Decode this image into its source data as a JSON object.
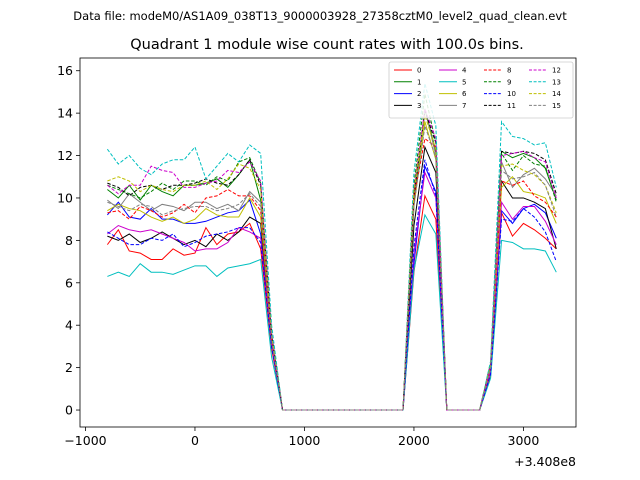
{
  "chart_data": {
    "type": "line",
    "suptitle": "Data file: modeM0/AS1A09_038T13_9000003928_27358cztM0_level2_quad_clean.evt",
    "title": "Quadrant 1 module wise count rates with 100.0s bins.",
    "xlabel": "",
    "ylabel": "",
    "x_offset_label": "+3.408e8",
    "xlim": [
      -1050,
      3480
    ],
    "ylim": [
      -0.8,
      16.6
    ],
    "xticks": [
      -1000,
      0,
      1000,
      2000,
      3000
    ],
    "xtick_labels": [
      "−1000",
      "0",
      "1000",
      "2000",
      "3000"
    ],
    "yticks": [
      0,
      2,
      4,
      6,
      8,
      10,
      12,
      14,
      16
    ],
    "ytick_labels": [
      "0",
      "2",
      "4",
      "6",
      "8",
      "10",
      "12",
      "14",
      "16"
    ],
    "grid": false,
    "legend_position": "top-right",
    "legend_columns": 4,
    "x": [
      -800,
      -700,
      -600,
      -500,
      -400,
      -300,
      -200,
      -100,
      0,
      100,
      200,
      300,
      400,
      500,
      600,
      700,
      800,
      900,
      1000,
      1100,
      1200,
      1300,
      1400,
      1500,
      1600,
      1700,
      1800,
      1900,
      2000,
      2100,
      2200,
      2300,
      2400,
      2500,
      2600,
      2700,
      2800,
      2900,
      3000,
      3100,
      3200,
      3300
    ],
    "series": [
      {
        "name": "0",
        "color": "#ff0000",
        "dash": "solid",
        "values": [
          7.8,
          8.5,
          7.5,
          7.4,
          7.1,
          7.1,
          7.6,
          7.3,
          7.4,
          8.6,
          7.8,
          8.3,
          8.4,
          8.8,
          7.6,
          2.9,
          0,
          0,
          0,
          0,
          0,
          0,
          0,
          0,
          0,
          0,
          0,
          0,
          6.5,
          10.1,
          9.0,
          0,
          0,
          0,
          0,
          1.6,
          9.3,
          8.2,
          8.8,
          8.5,
          8.1,
          7.6
        ]
      },
      {
        "name": "1",
        "color": "#008000",
        "dash": "solid",
        "values": [
          10.4,
          10.0,
          10.6,
          9.9,
          10.6,
          10.3,
          10.1,
          10.6,
          10.6,
          10.7,
          10.9,
          10.5,
          11.1,
          11.8,
          9.9,
          3.5,
          0,
          0,
          0,
          0,
          0,
          0,
          0,
          0,
          0,
          0,
          0,
          0,
          9.7,
          14.2,
          12.2,
          0,
          0,
          0,
          0,
          2.1,
          12.2,
          11.9,
          12.1,
          11.9,
          11.4,
          9.9
        ]
      },
      {
        "name": "2",
        "color": "#0000ff",
        "dash": "solid",
        "values": [
          9.2,
          9.8,
          9.1,
          9.0,
          9.5,
          9.0,
          9.0,
          8.8,
          8.8,
          8.9,
          9.1,
          9.3,
          9.4,
          9.9,
          8.3,
          3.1,
          0,
          0,
          0,
          0,
          0,
          0,
          0,
          0,
          0,
          0,
          0,
          0,
          6.9,
          11.5,
          10.3,
          0,
          0,
          0,
          0,
          1.8,
          9.4,
          8.8,
          9.5,
          9.7,
          9.3,
          8.1
        ]
      },
      {
        "name": "3",
        "color": "#000000",
        "dash": "solid",
        "values": [
          8.2,
          8.0,
          8.3,
          7.9,
          8.1,
          8.4,
          8.1,
          7.8,
          8.0,
          7.7,
          8.3,
          8.0,
          8.4,
          9.1,
          8.8,
          3.2,
          0,
          0,
          0,
          0,
          0,
          0,
          0,
          0,
          0,
          0,
          0,
          0,
          8.7,
          12.4,
          11.2,
          0,
          0,
          0,
          0,
          1.9,
          10.8,
          10.0,
          10.0,
          9.8,
          9.5,
          7.6
        ]
      },
      {
        "name": "4",
        "color": "#cc00cc",
        "dash": "solid",
        "values": [
          8.3,
          8.7,
          8.5,
          8.4,
          8.5,
          8.3,
          8.1,
          7.9,
          7.5,
          7.6,
          7.6,
          7.9,
          8.6,
          8.4,
          8.1,
          3.1,
          0,
          0,
          0,
          0,
          0,
          0,
          0,
          0,
          0,
          0,
          0,
          0,
          7.4,
          11.2,
          10.0,
          0,
          0,
          0,
          0,
          1.8,
          9.8,
          9.0,
          9.6,
          9.6,
          8.9,
          7.8
        ]
      },
      {
        "name": "5",
        "color": "#00bfbf",
        "dash": "solid",
        "values": [
          6.3,
          6.5,
          6.3,
          6.9,
          6.5,
          6.5,
          6.4,
          6.6,
          6.8,
          6.8,
          6.3,
          6.7,
          6.8,
          6.9,
          7.1,
          2.5,
          0,
          0,
          0,
          0,
          0,
          0,
          0,
          0,
          0,
          0,
          0,
          0,
          6.6,
          9.2,
          8.3,
          0,
          0,
          0,
          0,
          1.5,
          8.0,
          7.9,
          7.6,
          7.6,
          7.5,
          6.5
        ]
      },
      {
        "name": "6",
        "color": "#bfbf00",
        "dash": "solid",
        "values": [
          9.4,
          9.7,
          9.5,
          9.4,
          9.1,
          8.9,
          9.1,
          8.8,
          9.0,
          9.5,
          9.2,
          9.1,
          9.1,
          10.0,
          9.1,
          3.3,
          0,
          0,
          0,
          0,
          0,
          0,
          0,
          0,
          0,
          0,
          0,
          0,
          9.6,
          13.6,
          11.8,
          0,
          0,
          0,
          0,
          2.0,
          10.5,
          11.0,
          10.3,
          10.2,
          10.0,
          8.8
        ]
      },
      {
        "name": "7",
        "color": "#808080",
        "dash": "solid",
        "values": [
          9.9,
          9.5,
          10.2,
          9.8,
          9.4,
          9.7,
          9.6,
          9.4,
          9.8,
          9.8,
          9.5,
          9.7,
          9.4,
          10.3,
          9.8,
          3.4,
          0,
          0,
          0,
          0,
          0,
          0,
          0,
          0,
          0,
          0,
          0,
          0,
          9.9,
          14.2,
          12.0,
          0,
          0,
          0,
          0,
          2.0,
          11.7,
          10.5,
          11.1,
          11.4,
          10.9,
          10.1
        ]
      },
      {
        "name": "8",
        "color": "#ff0000",
        "dash": "dashed",
        "values": [
          9.3,
          9.4,
          9.0,
          9.6,
          9.4,
          9.1,
          9.3,
          9.7,
          9.3,
          10.0,
          10.1,
          10.4,
          10.1,
          10.1,
          9.4,
          3.4,
          0,
          0,
          0,
          0,
          0,
          0,
          0,
          0,
          0,
          0,
          0,
          0,
          10.0,
          12.8,
          12.4,
          0,
          0,
          0,
          0,
          2.0,
          10.8,
          10.6,
          10.8,
          10.1,
          9.8,
          9.1
        ]
      },
      {
        "name": "9",
        "color": "#008000",
        "dash": "dashed",
        "values": [
          10.6,
          10.4,
          10.2,
          10.0,
          10.3,
          10.7,
          10.4,
          10.8,
          10.8,
          10.6,
          11.0,
          10.8,
          11.7,
          11.9,
          10.7,
          3.5,
          0,
          0,
          0,
          0,
          0,
          0,
          0,
          0,
          0,
          0,
          0,
          0,
          10.6,
          14.9,
          12.6,
          0,
          0,
          0,
          0,
          2.1,
          12.1,
          11.3,
          12.0,
          11.6,
          11.5,
          9.8
        ]
      },
      {
        "name": "10",
        "color": "#0000ff",
        "dash": "dashed",
        "values": [
          8.4,
          8.1,
          7.8,
          7.8,
          8.1,
          8.0,
          8.3,
          7.7,
          7.9,
          8.2,
          8.3,
          8.4,
          8.6,
          8.6,
          7.9,
          3.0,
          0,
          0,
          0,
          0,
          0,
          0,
          0,
          0,
          0,
          0,
          0,
          0,
          7.7,
          11.8,
          10.1,
          0,
          0,
          0,
          0,
          1.7,
          9.0,
          8.9,
          9.5,
          9.1,
          8.4,
          7.0
        ]
      },
      {
        "name": "11",
        "color": "#000000",
        "dash": "dashed",
        "values": [
          10.7,
          10.5,
          10.1,
          10.5,
          10.6,
          10.4,
          10.6,
          10.6,
          10.7,
          10.9,
          10.7,
          10.6,
          11.1,
          11.8,
          10.6,
          3.6,
          0,
          0,
          0,
          0,
          0,
          0,
          0,
          0,
          0,
          0,
          0,
          0,
          10.1,
          14.1,
          12.6,
          0,
          0,
          0,
          0,
          2.2,
          12.2,
          12.1,
          12.2,
          12.1,
          11.8,
          10.2
        ]
      },
      {
        "name": "12",
        "color": "#cc00cc",
        "dash": "dashed",
        "values": [
          10.6,
          10.2,
          10.6,
          10.6,
          11.5,
          11.3,
          11.2,
          10.5,
          10.5,
          10.7,
          10.8,
          11.3,
          11.2,
          11.7,
          10.8,
          3.6,
          0,
          0,
          0,
          0,
          0,
          0,
          0,
          0,
          0,
          0,
          0,
          0,
          10.4,
          14.2,
          12.8,
          0,
          0,
          0,
          0,
          2.1,
          12.0,
          12.1,
          12.2,
          11.9,
          11.7,
          10.0
        ]
      },
      {
        "name": "13",
        "color": "#00bfbf",
        "dash": "dashed",
        "values": [
          12.3,
          11.6,
          12.0,
          11.4,
          11.1,
          11.6,
          11.8,
          11.8,
          12.4,
          10.9,
          11.5,
          12.1,
          11.7,
          12.5,
          12.1,
          4.0,
          0,
          0,
          0,
          0,
          0,
          0,
          0,
          0,
          0,
          0,
          0,
          0,
          11.2,
          15.4,
          13.4,
          0,
          0,
          0,
          0,
          2.3,
          13.6,
          12.9,
          12.8,
          12.5,
          12.6,
          10.5
        ]
      },
      {
        "name": "14",
        "color": "#bfbf00",
        "dash": "dashed",
        "values": [
          10.8,
          11.0,
          10.8,
          10.3,
          10.6,
          10.4,
          10.3,
          10.6,
          10.6,
          10.8,
          10.4,
          10.9,
          11.6,
          11.4,
          10.4,
          3.5,
          0,
          0,
          0,
          0,
          0,
          0,
          0,
          0,
          0,
          0,
          0,
          0,
          10.3,
          13.9,
          12.3,
          0,
          0,
          0,
          0,
          2.1,
          11.5,
          11.6,
          11.3,
          11.1,
          10.6,
          9.3
        ]
      },
      {
        "name": "15",
        "color": "#808080",
        "dash": "dashed",
        "values": [
          9.8,
          9.6,
          9.4,
          9.7,
          9.6,
          9.2,
          9.4,
          9.5,
          9.6,
          9.6,
          9.4,
          9.5,
          9.7,
          10.2,
          9.6,
          3.3,
          0,
          0,
          0,
          0,
          0,
          0,
          0,
          0,
          0,
          0,
          0,
          0,
          9.6,
          13.4,
          11.9,
          0,
          0,
          0,
          0,
          2.0,
          11.3,
          10.9,
          11.0,
          11.2,
          10.6,
          9.1
        ]
      }
    ]
  }
}
